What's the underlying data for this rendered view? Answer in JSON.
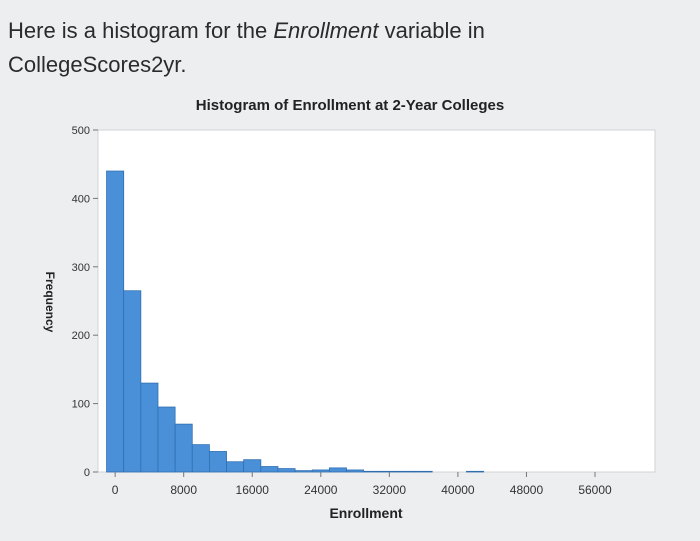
{
  "intro": {
    "part1": "Here is a histogram for the ",
    "variable": "Enrollment",
    "part2": " variable in",
    "dataset": "CollegeScores2yr."
  },
  "chart_data": {
    "type": "bar",
    "title": "Histogram of Enrollment at 2-Year Colleges",
    "xlabel": "Enrollment",
    "ylabel": "Frequency",
    "xlim": [
      -2000,
      63000
    ],
    "ylim": [
      0,
      500
    ],
    "xticks": [
      0,
      8000,
      16000,
      24000,
      32000,
      40000,
      48000,
      56000
    ],
    "yticks": [
      0,
      100,
      200,
      300,
      400,
      500
    ],
    "bin_width": 2000,
    "bin_start": -1000,
    "values": [
      440,
      265,
      130,
      95,
      70,
      40,
      30,
      15,
      18,
      8,
      5,
      2,
      3,
      6,
      3,
      1,
      1,
      1,
      1,
      0,
      0,
      1,
      0,
      0,
      0,
      0,
      0,
      0,
      0,
      0,
      0,
      0
    ],
    "bar_color": "#4a90d9",
    "grid": false
  }
}
